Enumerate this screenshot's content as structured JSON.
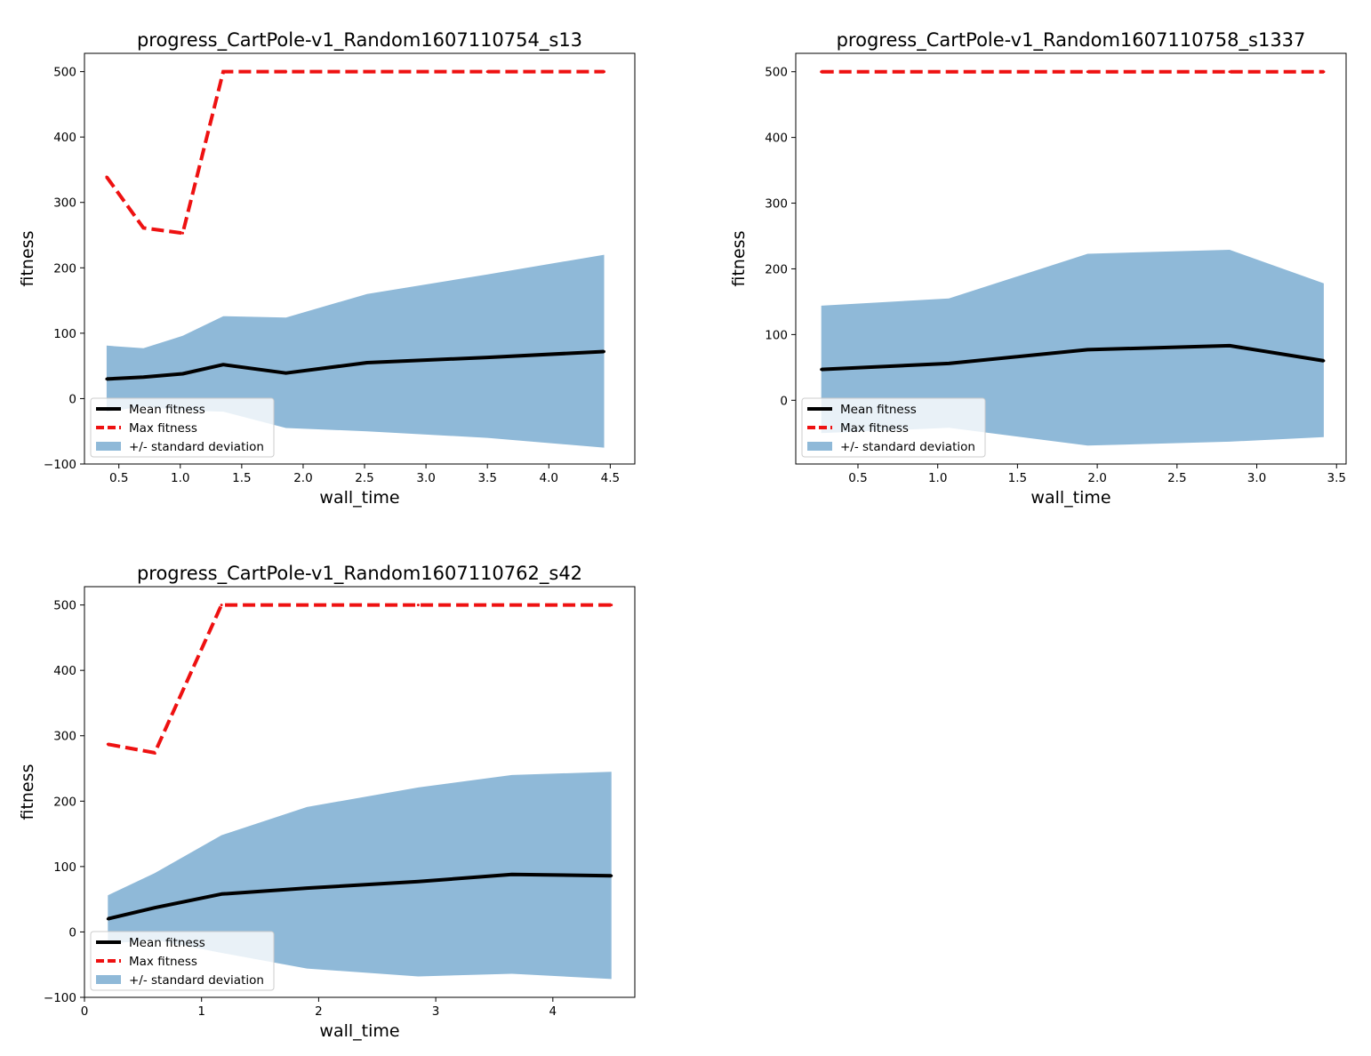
{
  "chart_data": [
    {
      "type": "line",
      "title": "progress_CartPole-v1_Random1607110754_s13",
      "xlabel": "wall_time",
      "ylabel": "fitness",
      "xlim": [
        0.22,
        4.7
      ],
      "ylim": [
        -100,
        528
      ],
      "xticks": [
        0.5,
        1.0,
        1.5,
        2.0,
        2.5,
        3.0,
        3.5,
        4.0,
        4.5
      ],
      "xtick_labels": [
        "0.5",
        "1.0",
        "1.5",
        "2.0",
        "2.5",
        "3.0",
        "3.5",
        "4.0",
        "4.5"
      ],
      "yticks": [
        -100,
        0,
        100,
        200,
        300,
        400,
        500
      ],
      "ytick_labels": [
        "−100",
        "0",
        "100",
        "200",
        "300",
        "400",
        "500"
      ],
      "x": [
        0.4,
        0.7,
        1.02,
        1.35,
        1.86,
        2.52,
        3.5,
        4.45
      ],
      "series": [
        {
          "name": "Mean fitness",
          "values": [
            30,
            33,
            38,
            52,
            39,
            55,
            63,
            72
          ]
        },
        {
          "name": "Max fitness",
          "values": [
            339,
            261,
            253,
            500,
            500,
            500,
            500,
            500
          ]
        }
      ],
      "band": {
        "name": "+/- standard deviation",
        "lower": [
          -20,
          -12,
          -18,
          -20,
          -45,
          -50,
          -60,
          -75
        ],
        "upper": [
          81,
          77,
          96,
          126,
          124,
          160,
          190,
          220
        ]
      },
      "legend": {
        "position": "lower left",
        "entries": [
          "Mean fitness",
          "Max fitness",
          "+/- standard deviation"
        ]
      },
      "colors": {
        "mean": "#000000",
        "max": "#ee1111",
        "band": "#8fb9d8"
      }
    },
    {
      "type": "line",
      "title": "progress_CartPole-v1_Random1607110758_s1337",
      "xlabel": "wall_time",
      "ylabel": "fitness",
      "xlim": [
        0.11,
        3.56
      ],
      "ylim": [
        -97,
        528
      ],
      "xticks": [
        0.5,
        1.0,
        1.5,
        2.0,
        2.5,
        3.0,
        3.5
      ],
      "xtick_labels": [
        "0.5",
        "1.0",
        "1.5",
        "2.0",
        "2.5",
        "3.0",
        "3.5"
      ],
      "yticks": [
        0,
        100,
        200,
        300,
        400,
        500
      ],
      "ytick_labels": [
        "0",
        "100",
        "200",
        "300",
        "400",
        "500"
      ],
      "x": [
        0.27,
        1.07,
        1.94,
        2.83,
        3.42
      ],
      "series": [
        {
          "name": "Mean fitness",
          "values": [
            47,
            56,
            77,
            83,
            60
          ]
        },
        {
          "name": "Max fitness",
          "values": [
            500,
            500,
            500,
            500,
            500
          ]
        }
      ],
      "band": {
        "name": "+/- standard deviation",
        "lower": [
          -50,
          -42,
          -69,
          -63,
          -56
        ],
        "upper": [
          144,
          155,
          223,
          229,
          178
        ]
      },
      "legend": {
        "position": "lower left",
        "entries": [
          "Mean fitness",
          "Max fitness",
          "+/- standard deviation"
        ]
      },
      "colors": {
        "mean": "#000000",
        "max": "#ee1111",
        "band": "#8fb9d8"
      }
    },
    {
      "type": "line",
      "title": "progress_CartPole-v1_Random1607110762_s42",
      "xlabel": "wall_time",
      "ylabel": "fitness",
      "xlim": [
        0,
        4.7
      ],
      "ylim": [
        -100,
        528
      ],
      "xticks": [
        0,
        1,
        2,
        3,
        4
      ],
      "xtick_labels": [
        "0",
        "1",
        "2",
        "3",
        "4"
      ],
      "yticks": [
        -100,
        0,
        100,
        200,
        300,
        400,
        500
      ],
      "ytick_labels": [
        "−100",
        "0",
        "100",
        "200",
        "300",
        "400",
        "500"
      ],
      "x": [
        0.2,
        0.6,
        1.17,
        1.9,
        2.85,
        3.65,
        4.5
      ],
      "series": [
        {
          "name": "Mean fitness",
          "values": [
            20,
            37,
            58,
            67,
            77,
            88,
            86
          ]
        },
        {
          "name": "Max fitness",
          "values": [
            287,
            274,
            500,
            500,
            500,
            500,
            500
          ]
        }
      ],
      "band": {
        "name": "+/- standard deviation",
        "lower": [
          -18,
          -12,
          -32,
          -56,
          -68,
          -64,
          -72
        ],
        "upper": [
          56,
          90,
          148,
          191,
          221,
          240,
          245
        ]
      },
      "legend": {
        "position": "lower left",
        "entries": [
          "Mean fitness",
          "Max fitness",
          "+/- standard deviation"
        ]
      },
      "colors": {
        "mean": "#000000",
        "max": "#ee1111",
        "band": "#8fb9d8"
      }
    }
  ]
}
